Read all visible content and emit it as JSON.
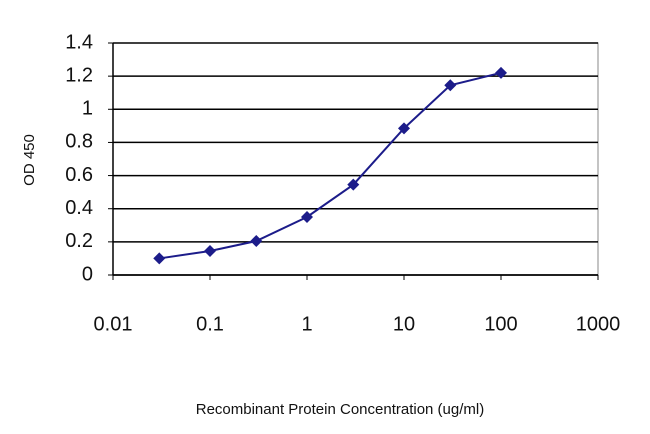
{
  "chart_data": {
    "type": "line",
    "x_label": "Recombinant Protein Concentration (ug/ml)",
    "y_label": "OD 450",
    "x": [
      0.03,
      0.1,
      0.3,
      1,
      3,
      10,
      30,
      100
    ],
    "series": [
      {
        "name": "OD 450",
        "color": "#1c1c8a",
        "values": [
          0.1,
          0.145,
          0.205,
          0.35,
          0.545,
          0.885,
          1.145,
          1.22
        ]
      }
    ],
    "xlim": [
      0.01,
      1000
    ],
    "xticks": [
      0.01,
      0.1,
      1,
      10,
      100,
      1000
    ],
    "xscale": "log",
    "ylim": [
      0,
      1.4
    ],
    "yticks": [
      0,
      0.2,
      0.4,
      0.6,
      0.8,
      1,
      1.2,
      1.4
    ],
    "grid": true
  }
}
